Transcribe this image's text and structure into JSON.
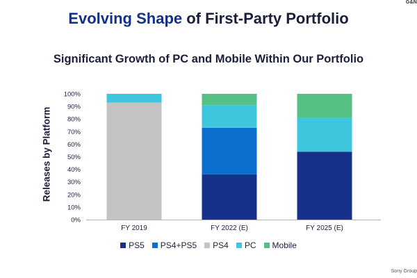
{
  "header": {
    "corner_tag": "G&N",
    "title_accent": "Evolving Shape",
    "title_rest": " of First-Party Portfolio",
    "subtitle": "Significant Growth of PC and Mobile Within Our Portfolio"
  },
  "footer": {
    "text": "Sony Group"
  },
  "chart_data": {
    "type": "bar",
    "stacked": true,
    "title": "Significant Growth of PC and Mobile Within Our Portfolio",
    "xlabel": "",
    "ylabel": "Releases by Platform",
    "ylim": [
      0,
      100
    ],
    "yticks": [
      "0%",
      "10%",
      "20%",
      "30%",
      "40%",
      "50%",
      "60%",
      "70%",
      "80%",
      "90%",
      "100%"
    ],
    "categories": [
      "FY 2019",
      "FY 2022 (E)",
      "FY 2025 (E)"
    ],
    "series": [
      {
        "name": "PS5",
        "color": "#15318a",
        "values": [
          0,
          36,
          54
        ]
      },
      {
        "name": "PS4+PS5",
        "color": "#0b6fcd",
        "values": [
          0,
          37,
          0
        ]
      },
      {
        "name": "PS4",
        "color": "#c3c3c3",
        "values": [
          93,
          0,
          0
        ]
      },
      {
        "name": "PC",
        "color": "#3ec6de",
        "values": [
          7,
          18,
          27
        ]
      },
      {
        "name": "Mobile",
        "color": "#55c083",
        "values": [
          0,
          9,
          19
        ]
      }
    ],
    "grid": false,
    "legend_position": "bottom"
  }
}
